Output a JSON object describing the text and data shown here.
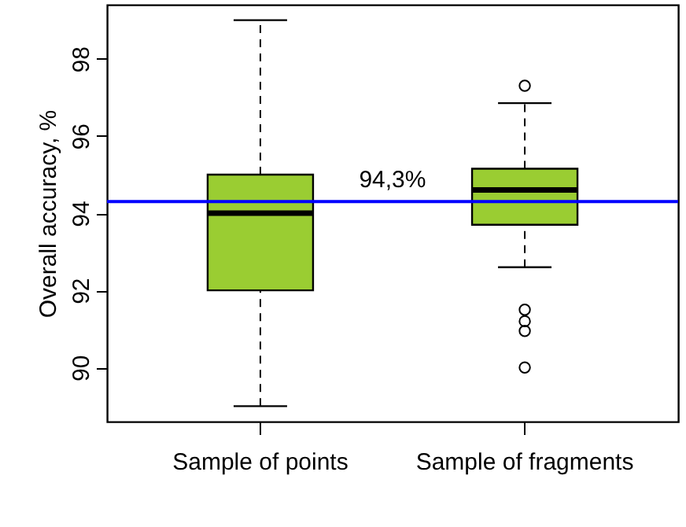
{
  "chart_data": {
    "type": "box",
    "ylabel": "Overall accuracy, %",
    "categories": [
      "Sample of points",
      "Sample of fragments"
    ],
    "color": "#9acd32",
    "boxes": [
      {
        "low": 89.0,
        "q1": 92.0,
        "median": 94.0,
        "q3": 95.0,
        "high": 99.0
      },
      {
        "low": 92.6,
        "q1": 93.7,
        "median": 94.6,
        "q3": 95.15,
        "high": 96.85,
        "outliers": [
          97.3,
          91.5,
          91.2,
          90.95,
          90.0
        ]
      }
    ],
    "ylim": [
      88.6,
      99.4
    ],
    "yticks": [
      90,
      92,
      94,
      96,
      98
    ],
    "ref_lines": [
      {
        "axis": "y",
        "value": 94.3,
        "label": "94,3%",
        "color": "#0000ff"
      }
    ]
  }
}
